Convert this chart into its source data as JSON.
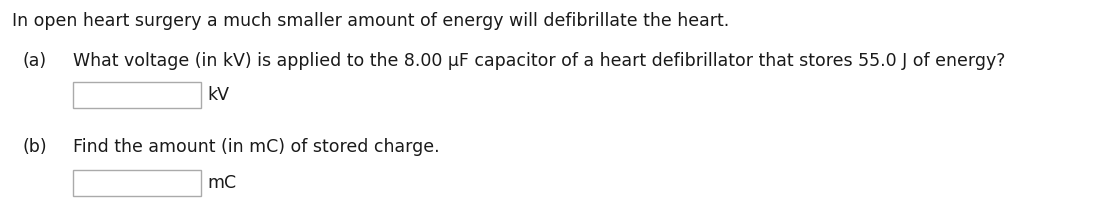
{
  "background_color": "#ffffff",
  "title_text": "In open heart surgery a much smaller amount of energy will defibrillate the heart.",
  "part_a_label": "(a)",
  "part_a_text": "What voltage (in kV) is applied to the 8.00 μF capacitor of a heart defibrillator that stores 55.0 J of energy?",
  "part_a_unit": "kV",
  "part_b_label": "(b)",
  "part_b_text": "Find the amount (in mC) of stored charge.",
  "part_b_unit": "mC",
  "font_size": 12.5,
  "text_color": "#1a1a1a",
  "box_facecolor": "#ffffff",
  "box_edgecolor": "#aaaaaa",
  "fig_width": 11.04,
  "fig_height": 2.18,
  "dpi": 100
}
